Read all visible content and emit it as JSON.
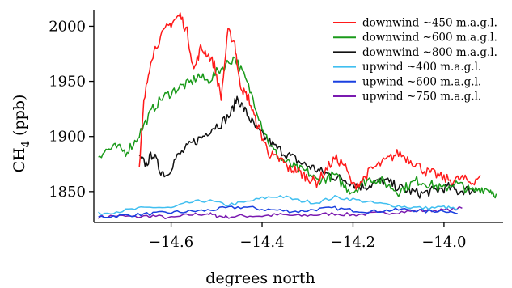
{
  "chart_data": {
    "type": "line",
    "xlabel": "degrees north",
    "ylabel_main": "CH",
    "ylabel_sub": "4",
    "ylabel_unit": " (ppb)",
    "xlim": [
      -14.77,
      -13.87
    ],
    "ylim": [
      1822,
      2015
    ],
    "x_ticks": [
      -14.6,
      -14.4,
      -14.2,
      -14.0
    ],
    "x_tick_labels": [
      "−14.6",
      "−14.4",
      "−14.2",
      "−14.0"
    ],
    "y_ticks": [
      1850,
      1900,
      1950,
      2000
    ],
    "y_tick_labels": [
      "1850",
      "1900",
      "1950",
      "2000"
    ],
    "grid": false,
    "legend_position": "top-right",
    "series": [
      {
        "name": "downwind ~450 m.a.g.l.",
        "color": "#ff1a1a",
        "x": [
          -14.67,
          -14.66,
          -14.645,
          -14.63,
          -14.61,
          -14.595,
          -14.58,
          -14.565,
          -14.55,
          -14.535,
          -14.52,
          -14.505,
          -14.49,
          -14.475,
          -14.46,
          -14.45,
          -14.44,
          -14.43,
          -14.415,
          -14.4,
          -14.385,
          -14.37,
          -14.355,
          -14.34,
          -14.325,
          -14.31,
          -14.295,
          -14.28,
          -14.26,
          -14.24,
          -14.22,
          -14.2,
          -14.18,
          -14.16,
          -14.14,
          -14.12,
          -14.1,
          -14.08,
          -14.06,
          -14.04,
          -14.02,
          -14.0,
          -13.98,
          -13.96,
          -13.94,
          -13.92
        ],
        "y": [
          1870,
          1930,
          1970,
          1985,
          1998,
          2005,
          2010,
          1995,
          1960,
          1980,
          1975,
          1965,
          1935,
          1995,
          1985,
          1950,
          1940,
          1935,
          1915,
          1900,
          1885,
          1880,
          1878,
          1870,
          1870,
          1865,
          1862,
          1858,
          1870,
          1880,
          1875,
          1855,
          1860,
          1870,
          1875,
          1880,
          1885,
          1880,
          1875,
          1868,
          1866,
          1862,
          1860,
          1862,
          1858,
          1865
        ]
      },
      {
        "name": "downwind ~600 m.a.g.l.",
        "color": "#1a9a1a",
        "x": [
          -14.76,
          -14.74,
          -14.72,
          -14.7,
          -14.68,
          -14.66,
          -14.64,
          -14.62,
          -14.6,
          -14.58,
          -14.56,
          -14.54,
          -14.52,
          -14.5,
          -14.48,
          -14.46,
          -14.44,
          -14.42,
          -14.4,
          -14.38,
          -14.36,
          -14.34,
          -14.32,
          -14.3,
          -14.28,
          -14.26,
          -14.24,
          -14.22,
          -14.2,
          -14.18,
          -14.16,
          -14.14,
          -14.12,
          -14.1,
          -14.08,
          -14.06,
          -14.04,
          -14.02,
          -14.0,
          -13.98,
          -13.96,
          -13.94,
          -13.92,
          -13.9,
          -13.885
        ],
        "y": [
          1883,
          1888,
          1890,
          1886,
          1895,
          1910,
          1925,
          1935,
          1940,
          1945,
          1948,
          1955,
          1950,
          1958,
          1965,
          1972,
          1955,
          1935,
          1910,
          1890,
          1880,
          1875,
          1870,
          1868,
          1860,
          1862,
          1865,
          1855,
          1850,
          1858,
          1862,
          1860,
          1855,
          1850,
          1855,
          1860,
          1858,
          1855,
          1852,
          1858,
          1855,
          1850,
          1853,
          1852,
          1848
        ]
      },
      {
        "name": "downwind ~800 m.a.g.l.",
        "color": "#111111",
        "x": [
          -14.67,
          -14.655,
          -14.64,
          -14.625,
          -14.61,
          -14.59,
          -14.57,
          -14.55,
          -14.53,
          -14.51,
          -14.49,
          -14.47,
          -14.455,
          -14.44,
          -14.425,
          -14.41,
          -14.39,
          -14.37,
          -14.35,
          -14.33,
          -14.31,
          -14.29,
          -14.27,
          -14.25,
          -14.23,
          -14.21,
          -14.19,
          -14.17,
          -14.15,
          -14.13,
          -14.11,
          -14.09,
          -14.07,
          -14.05,
          -14.03,
          -14.01,
          -13.99,
          -13.97,
          -13.95,
          -13.93
        ],
        "y": [
          1880,
          1875,
          1885,
          1870,
          1865,
          1880,
          1888,
          1895,
          1900,
          1908,
          1912,
          1920,
          1935,
          1925,
          1915,
          1905,
          1898,
          1890,
          1885,
          1880,
          1875,
          1872,
          1868,
          1865,
          1862,
          1860,
          1855,
          1855,
          1858,
          1860,
          1856,
          1852,
          1850,
          1848,
          1850,
          1852,
          1854,
          1850,
          1852,
          1850
        ]
      },
      {
        "name": "upwind ~400 m.a.g.l.",
        "color": "#40bff0",
        "x": [
          -14.76,
          -14.72,
          -14.68,
          -14.64,
          -14.6,
          -14.56,
          -14.52,
          -14.48,
          -14.44,
          -14.4,
          -14.36,
          -14.32,
          -14.28,
          -14.24,
          -14.2,
          -14.16,
          -14.12,
          -14.08,
          -14.04,
          -14.0,
          -13.97
        ],
        "y": [
          1830,
          1832,
          1834,
          1836,
          1835,
          1840,
          1842,
          1838,
          1840,
          1844,
          1846,
          1842,
          1840,
          1845,
          1843,
          1840,
          1838,
          1836,
          1835,
          1836,
          1834
        ]
      },
      {
        "name": "upwind ~600 m.a.g.l.",
        "color": "#1a40e0",
        "x": [
          -14.76,
          -14.72,
          -14.68,
          -14.64,
          -14.6,
          -14.56,
          -14.52,
          -14.48,
          -14.44,
          -14.4,
          -14.36,
          -14.32,
          -14.28,
          -14.24,
          -14.2,
          -14.16,
          -14.12,
          -14.08,
          -14.04,
          -14.0,
          -13.97
        ],
        "y": [
          1827,
          1828,
          1829,
          1830,
          1831,
          1832,
          1833,
          1835,
          1836,
          1834,
          1833,
          1832,
          1834,
          1835,
          1833,
          1832,
          1833,
          1834,
          1832,
          1833,
          1830
        ]
      },
      {
        "name": "upwind ~750 m.a.g.l.",
        "color": "#7a1ab0",
        "x": [
          -14.76,
          -14.72,
          -14.68,
          -14.64,
          -14.6,
          -14.56,
          -14.52,
          -14.5,
          -14.48,
          -14.44,
          -14.4,
          -14.36,
          -14.32,
          -14.28,
          -14.24,
          -14.2,
          -14.16,
          -14.12,
          -14.08,
          -14.04,
          -14.0,
          -13.96
        ],
        "y": [
          1827,
          1828,
          1827,
          1828,
          1826,
          1829,
          1830,
          1828,
          1827,
          1828,
          1828,
          1829,
          1828,
          1829,
          1830,
          1829,
          1830,
          1831,
          1832,
          1833,
          1833,
          1835
        ]
      }
    ]
  }
}
